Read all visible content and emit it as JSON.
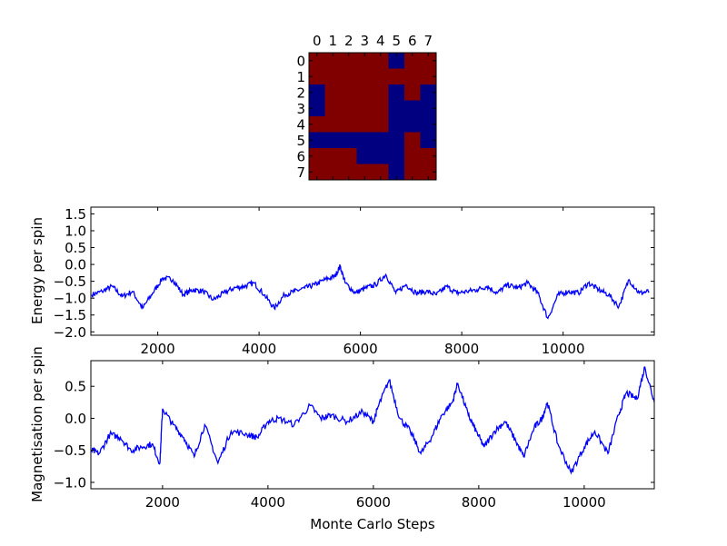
{
  "chart_data": [
    {
      "type": "heatmap",
      "title": "",
      "x_tick_labels": [
        "0",
        "1",
        "2",
        "3",
        "4",
        "5",
        "6",
        "7"
      ],
      "y_tick_labels": [
        "0",
        "1",
        "2",
        "3",
        "4",
        "5",
        "6",
        "7"
      ],
      "colors": {
        "1": "#800000",
        "0": "#000080"
      },
      "grid": [
        [
          1,
          1,
          1,
          1,
          1,
          0,
          1,
          1
        ],
        [
          1,
          1,
          1,
          1,
          1,
          1,
          1,
          1
        ],
        [
          0,
          1,
          1,
          1,
          1,
          0,
          1,
          0
        ],
        [
          0,
          1,
          1,
          1,
          1,
          0,
          0,
          0
        ],
        [
          1,
          1,
          1,
          1,
          1,
          0,
          0,
          0
        ],
        [
          0,
          0,
          0,
          0,
          0,
          0,
          1,
          0
        ],
        [
          1,
          1,
          1,
          0,
          0,
          0,
          1,
          1
        ],
        [
          1,
          1,
          1,
          1,
          1,
          0,
          1,
          1
        ]
      ]
    },
    {
      "type": "line",
      "xlabel": "",
      "ylabel": "Energy per spin",
      "xlim": [
        680,
        11800
      ],
      "ylim": [
        -2.1,
        1.7
      ],
      "x_ticks": [
        2000,
        4000,
        6000,
        8000,
        10000
      ],
      "y_ticks": [
        -2.0,
        -1.5,
        -1.0,
        -0.5,
        0.0,
        0.5,
        1.0,
        1.5
      ],
      "x_tick_labels": [
        "2000",
        "4000",
        "6000",
        "8000",
        "10000"
      ],
      "y_tick_labels": [
        "−2.0",
        "−1.5",
        "−1.0",
        "−0.5",
        "0.0",
        "0.5",
        "1.0",
        "1.5"
      ],
      "color": "#0000ff",
      "x": [
        700,
        900,
        1100,
        1300,
        1500,
        1700,
        1900,
        2100,
        2300,
        2500,
        2700,
        2900,
        3100,
        3300,
        3500,
        3700,
        3900,
        4100,
        4300,
        4500,
        4700,
        4900,
        5100,
        5300,
        5500,
        5600,
        5700,
        5900,
        6100,
        6300,
        6500,
        6700,
        6900,
        7100,
        7300,
        7500,
        7700,
        7900,
        8100,
        8300,
        8500,
        8700,
        8900,
        9100,
        9300,
        9500,
        9700,
        9900,
        10100,
        10300,
        10500,
        10700,
        10900,
        11100,
        11300,
        11500,
        11700
      ],
      "y": [
        -0.9,
        -0.8,
        -0.65,
        -0.95,
        -0.8,
        -1.3,
        -0.85,
        -0.4,
        -0.45,
        -0.9,
        -0.75,
        -0.8,
        -1.05,
        -0.85,
        -0.7,
        -0.65,
        -0.55,
        -0.9,
        -1.3,
        -0.9,
        -0.8,
        -0.7,
        -0.6,
        -0.45,
        -0.35,
        -0.05,
        -0.55,
        -0.85,
        -0.7,
        -0.6,
        -0.3,
        -0.85,
        -0.6,
        -0.85,
        -0.8,
        -0.9,
        -0.65,
        -0.85,
        -0.8,
        -0.75,
        -0.65,
        -0.85,
        -0.6,
        -0.7,
        -0.55,
        -0.85,
        -1.6,
        -0.9,
        -0.8,
        -0.85,
        -0.55,
        -0.75,
        -0.9,
        -1.25,
        -0.45,
        -0.85,
        -0.8
      ]
    },
    {
      "type": "line",
      "xlabel": "Monte Carlo Steps",
      "ylabel": "Magnetisation per spin",
      "xlim": [
        640,
        11330
      ],
      "ylim": [
        -1.1,
        0.9
      ],
      "x_ticks": [
        2000,
        4000,
        6000,
        8000,
        10000
      ],
      "y_ticks": [
        -1.0,
        -0.5,
        0.0,
        0.5
      ],
      "x_tick_labels": [
        "2000",
        "4000",
        "6000",
        "8000",
        "10000"
      ],
      "y_tick_labels": [
        "−1.0",
        "−0.5",
        "0.0",
        "0.5"
      ],
      "color": "#0000ff",
      "x": [
        650,
        800,
        1000,
        1200,
        1400,
        1600,
        1800,
        1950,
        2000,
        2200,
        2400,
        2600,
        2800,
        3050,
        3300,
        3600,
        3800,
        4000,
        4200,
        4500,
        4800,
        5000,
        5200,
        5500,
        5800,
        6000,
        6100,
        6300,
        6500,
        6700,
        6900,
        7100,
        7300,
        7500,
        7600,
        7800,
        7950,
        8100,
        8300,
        8500,
        8700,
        8850,
        9050,
        9200,
        9300,
        9500,
        9750,
        10000,
        10200,
        10450,
        10650,
        10800,
        11000,
        11150,
        11330
      ],
      "y": [
        -0.5,
        -0.55,
        -0.25,
        -0.3,
        -0.5,
        -0.45,
        -0.4,
        -0.7,
        0.15,
        -0.1,
        -0.3,
        -0.6,
        -0.1,
        -0.7,
        -0.2,
        -0.25,
        -0.3,
        -0.05,
        0.0,
        -0.1,
        0.2,
        0.0,
        0.05,
        -0.05,
        0.1,
        -0.05,
        0.2,
        0.6,
        0.0,
        -0.2,
        -0.55,
        -0.3,
        0.05,
        0.25,
        0.55,
        0.05,
        -0.2,
        -0.45,
        -0.2,
        -0.05,
        -0.35,
        -0.6,
        -0.15,
        0.0,
        0.25,
        -0.4,
        -0.85,
        -0.45,
        -0.2,
        -0.55,
        0.05,
        0.4,
        0.3,
        0.8,
        0.25
      ]
    }
  ]
}
